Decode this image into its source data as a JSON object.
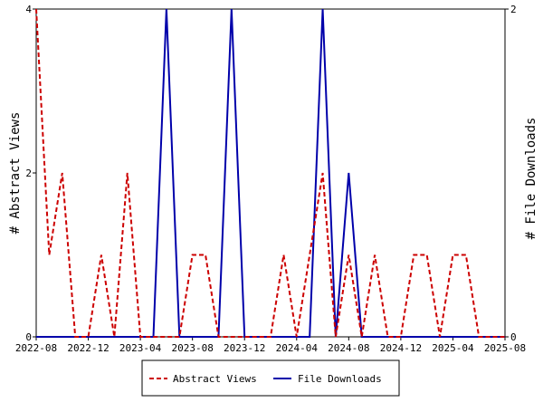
{
  "chart_data": {
    "type": "line",
    "x_ticks": [
      "2022-08",
      "2022-12",
      "2023-04",
      "2023-08",
      "2023-12",
      "2024-04",
      "2024-08",
      "2024-12",
      "2025-04",
      "2025-08"
    ],
    "x_range": [
      "2022-08",
      "2025-08"
    ],
    "y_left": {
      "label": "# Abstract Views",
      "range": [
        0,
        4
      ],
      "ticks": [
        "0",
        "2",
        "4"
      ]
    },
    "y_right": {
      "label": "# File Downloads",
      "range": [
        0,
        2
      ],
      "ticks": [
        "0",
        "2"
      ]
    },
    "grid": false,
    "legend_placement": "bottom",
    "series": [
      {
        "name": "Abstract Views",
        "axis": "left",
        "color": "#cc0000",
        "style": "dashed",
        "x": [
          "2022-08",
          "2022-09",
          "2022-10",
          "2022-11",
          "2022-12",
          "2023-01",
          "2023-02",
          "2023-03",
          "2023-04",
          "2023-05",
          "2023-06",
          "2023-07",
          "2023-08",
          "2023-09",
          "2023-10",
          "2023-11",
          "2023-12",
          "2024-01",
          "2024-02",
          "2024-03",
          "2024-04",
          "2024-05",
          "2024-06",
          "2024-07",
          "2024-08",
          "2024-09",
          "2024-10",
          "2024-11",
          "2024-12",
          "2025-01",
          "2025-02",
          "2025-03",
          "2025-04",
          "2025-05",
          "2025-06",
          "2025-07",
          "2025-08"
        ],
        "values": [
          4,
          1,
          2,
          0,
          0,
          1,
          0,
          2,
          0,
          0,
          0,
          0,
          1,
          1,
          0,
          0,
          0,
          0,
          0,
          1,
          0,
          1,
          2,
          0,
          1,
          0,
          1,
          0,
          0,
          1,
          1,
          0,
          1,
          1,
          0,
          0,
          0
        ]
      },
      {
        "name": "File Downloads",
        "axis": "right",
        "color": "#0000aa",
        "style": "solid",
        "x": [
          "2022-08",
          "2022-09",
          "2022-10",
          "2022-11",
          "2022-12",
          "2023-01",
          "2023-02",
          "2023-03",
          "2023-04",
          "2023-05",
          "2023-06",
          "2023-07",
          "2023-08",
          "2023-09",
          "2023-10",
          "2023-11",
          "2023-12",
          "2024-01",
          "2024-02",
          "2024-03",
          "2024-04",
          "2024-05",
          "2024-06",
          "2024-07",
          "2024-08",
          "2024-09",
          "2024-10",
          "2024-11",
          "2024-12",
          "2025-01",
          "2025-02",
          "2025-03",
          "2025-04",
          "2025-05",
          "2025-06",
          "2025-07",
          "2025-08"
        ],
        "values": [
          0,
          0,
          0,
          0,
          0,
          0,
          0,
          0,
          0,
          0,
          2,
          0,
          0,
          0,
          0,
          2,
          0,
          0,
          0,
          0,
          0,
          0,
          2,
          0,
          1,
          0,
          0,
          0,
          0,
          0,
          0,
          0,
          0,
          0,
          0,
          0,
          0
        ]
      }
    ]
  }
}
